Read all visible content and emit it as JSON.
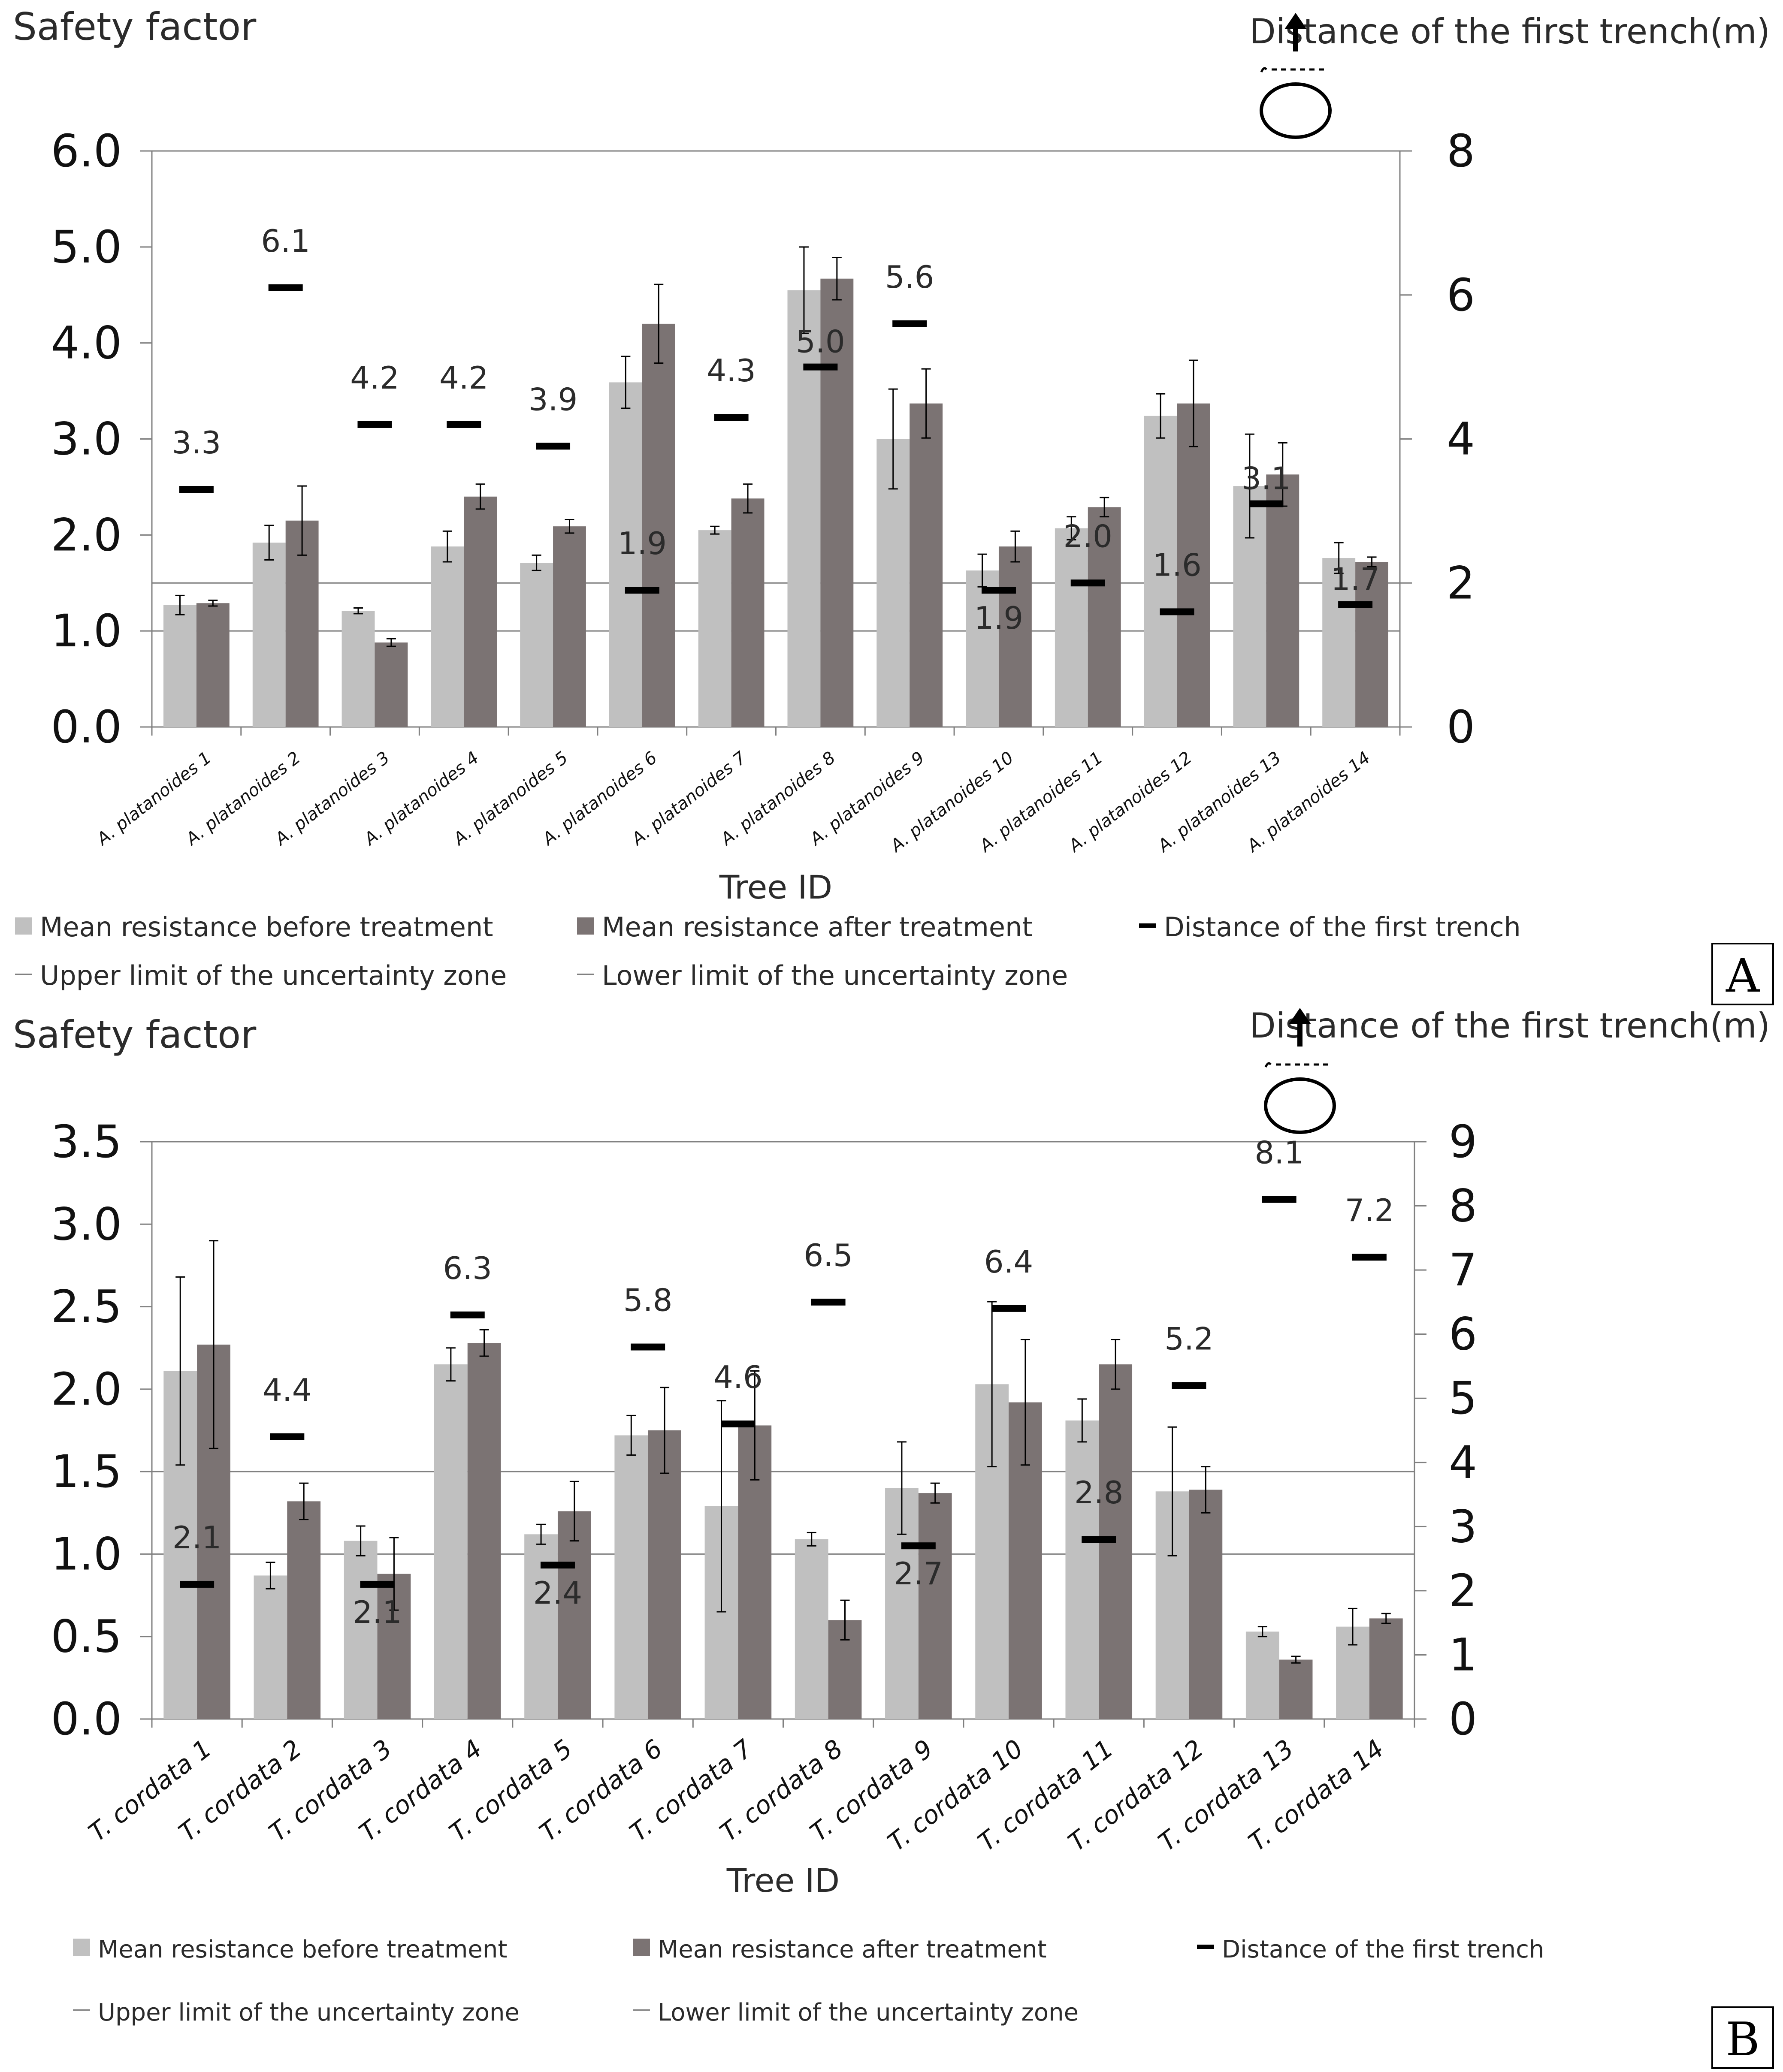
{
  "chart_data": [
    {
      "panel": "A",
      "type": "bar",
      "ylabel": "Safety factor",
      "y2label": "Distance of the first trench(m)",
      "xlabel": "Tree ID",
      "ylim": [
        0,
        6
      ],
      "yticks": [
        "0.0",
        "1.0",
        "2.0",
        "3.0",
        "4.0",
        "5.0",
        "6.0"
      ],
      "y2lim": [
        0,
        8
      ],
      "y2ticks": [
        "0",
        "2",
        "4",
        "6",
        "8"
      ],
      "categories": [
        "A. platanoides 1",
        "A. platanoides 2",
        "A. platanoides 3",
        "A. platanoides 4",
        "A. platanoides 5",
        "A. platanoides 6",
        "A. platanoides 7",
        "A. platanoides 8",
        "A. platanoides 9",
        "A. platanoides 10",
        "A. platanoides 11",
        "A. platanoides 12",
        "A. platanoides 13",
        "A. platanoides 14"
      ],
      "before": [
        1.27,
        1.92,
        1.21,
        1.88,
        1.71,
        3.59,
        2.05,
        4.55,
        3.0,
        1.63,
        2.07,
        3.24,
        2.51,
        1.76
      ],
      "before_err": [
        0.1,
        0.18,
        0.03,
        0.16,
        0.08,
        0.27,
        0.04,
        0.45,
        0.52,
        0.17,
        0.12,
        0.23,
        0.54,
        0.16
      ],
      "after": [
        1.29,
        2.15,
        0.88,
        2.4,
        2.09,
        4.2,
        2.38,
        4.67,
        3.37,
        1.88,
        2.29,
        3.37,
        2.63,
        1.72
      ],
      "after_err": [
        0.03,
        0.36,
        0.04,
        0.13,
        0.07,
        0.41,
        0.15,
        0.22,
        0.36,
        0.16,
        0.1,
        0.45,
        0.33,
        0.05
      ],
      "trench": [
        3.3,
        6.1,
        4.2,
        4.2,
        3.9,
        1.9,
        4.3,
        5.0,
        5.6,
        1.9,
        2.0,
        1.6,
        3.1,
        1.7
      ],
      "trench_labels": [
        "3.3",
        "6.1",
        "4.2",
        "4.2",
        "3.9",
        "1.9",
        "4.3",
        "5.0",
        "5.6",
        "1.9",
        "2.0",
        "1.6",
        "3.1",
        "1.7"
      ],
      "trench_label_pos": [
        "above",
        "above",
        "above",
        "above",
        "above",
        "above",
        "above",
        "on",
        "above",
        "below",
        "above",
        "above",
        "on",
        "on"
      ],
      "upper_limit": 1.5,
      "lower_limit": 1.0,
      "legend": [
        "Mean resistance before treatment",
        "Mean resistance after treatment",
        "Distance of the first trench",
        "Upper limit of the uncertainty zone",
        "Lower limit of the uncertainty zone"
      ],
      "panel_label": "A"
    },
    {
      "panel": "B",
      "type": "bar",
      "ylabel": "Safety factor",
      "y2label": "Distance of the first trench(m)",
      "xlabel": "Tree ID",
      "ylim": [
        0,
        3.5
      ],
      "yticks": [
        "0.0",
        "0.5",
        "1.0",
        "1.5",
        "2.0",
        "2.5",
        "3.0",
        "3.5"
      ],
      "y2lim": [
        0,
        9
      ],
      "y2ticks": [
        "0",
        "1",
        "2",
        "3",
        "4",
        "5",
        "6",
        "7",
        "8",
        "9"
      ],
      "categories": [
        "T. cordata 1",
        "T. cordata 2",
        "T. cordata 3",
        "T. cordata 4",
        "T. cordata 5",
        "T. cordata 6",
        "T. cordata 7",
        "T. cordata 8",
        "T. cordata 9",
        "T. cordata 10",
        "T. cordata 11",
        "T. cordata 12",
        "T. cordata 13",
        "T. cordata 14"
      ],
      "before": [
        2.11,
        0.87,
        1.08,
        2.15,
        1.12,
        1.72,
        1.29,
        1.09,
        1.4,
        2.03,
        1.81,
        1.38,
        0.53,
        0.56
      ],
      "before_err": [
        0.57,
        0.08,
        0.09,
        0.1,
        0.06,
        0.12,
        0.64,
        0.04,
        0.28,
        0.5,
        0.13,
        0.39,
        0.03,
        0.11
      ],
      "after": [
        2.27,
        1.32,
        0.88,
        2.28,
        1.26,
        1.75,
        1.78,
        0.6,
        1.37,
        1.92,
        2.15,
        1.39,
        0.36,
        0.61
      ],
      "after_err": [
        0.63,
        0.11,
        0.22,
        0.08,
        0.18,
        0.26,
        0.33,
        0.12,
        0.06,
        0.38,
        0.15,
        0.14,
        0.02,
        0.03
      ],
      "trench": [
        2.1,
        4.4,
        2.1,
        6.3,
        2.4,
        5.8,
        4.6,
        6.5,
        2.7,
        6.4,
        2.8,
        5.2,
        8.1,
        7.2
      ],
      "trench_labels": [
        "2.1",
        "4.4",
        "2.1",
        "6.3",
        "2.4",
        "5.8",
        "4.6",
        "6.5",
        "2.7",
        "6.4",
        "2.8",
        "5.2",
        "8.1",
        "7.2"
      ],
      "trench_label_pos": [
        "above",
        "above",
        "below",
        "above",
        "below",
        "above",
        "above",
        "above",
        "below",
        "above",
        "above",
        "above",
        "above",
        "above"
      ],
      "upper_limit": 1.5,
      "lower_limit": 1.0,
      "legend": [
        "Mean resistance before treatment",
        "Mean resistance after treatment",
        "Distance of the first trench",
        "Upper limit of the uncertainty zone",
        "Lower limit of the uncertainty zone"
      ],
      "panel_label": "B"
    }
  ],
  "colors": {
    "before": "#c0c0c0",
    "after": "#7b7373",
    "trench": "#000000",
    "limit_line": "#808080",
    "axis": "#808080",
    "text": "#2b2b2b"
  }
}
